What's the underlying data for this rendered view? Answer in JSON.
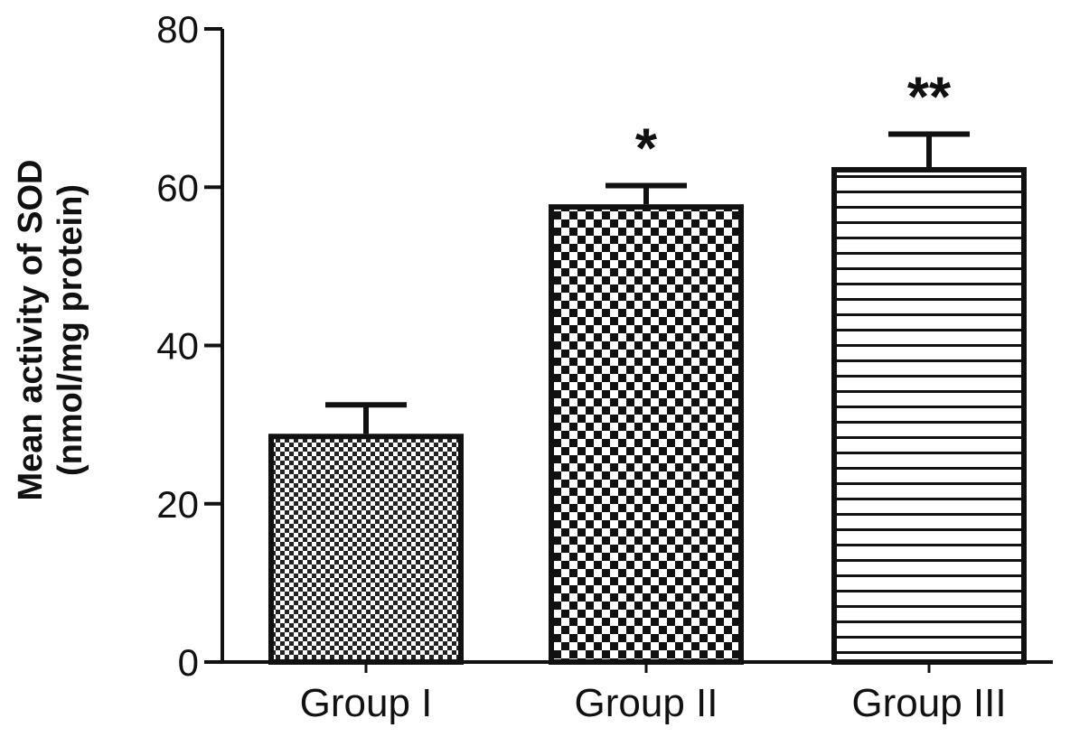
{
  "chart_data": {
    "type": "bar",
    "categories": [
      "Group I",
      "Group II",
      "Group III"
    ],
    "values": [
      28.5,
      57.5,
      62.2
    ],
    "error_upper": [
      32.5,
      60.2,
      66.7
    ],
    "annotations": [
      "",
      "*",
      "**"
    ],
    "fill_patterns": [
      "fine-checker",
      "coarse-checker",
      "horizontal-lines"
    ],
    "ylabel_lines": [
      "Mean activity of SOD",
      "(nmol/mg protein)"
    ],
    "xlabel": "",
    "ylim": [
      0,
      80
    ],
    "yticks": [
      0,
      20,
      40,
      60,
      80
    ],
    "ytick_labels": [
      "0",
      "20",
      "40",
      "60",
      "80"
    ],
    "grid": false,
    "colors": {
      "ink": "#111111",
      "background": "#ffffff"
    }
  }
}
